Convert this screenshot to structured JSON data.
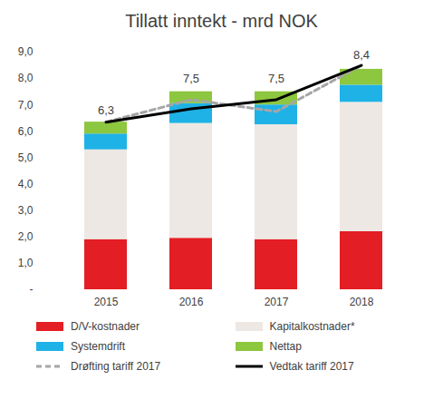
{
  "chart_data": {
    "type": "bar",
    "stacked": true,
    "title": "Tillatt inntekt - mrd NOK",
    "categories": [
      "2015",
      "2016",
      "2017",
      "2018"
    ],
    "series": [
      {
        "name": "D/V-kostnader",
        "color": "#e31e24",
        "type": "bar",
        "values": [
          1.9,
          1.95,
          1.9,
          2.2
        ]
      },
      {
        "name": "Kapitalkostnader*",
        "color": "#ede8e3",
        "type": "bar",
        "values": [
          3.4,
          4.35,
          4.35,
          4.9
        ]
      },
      {
        "name": "Systemdrift",
        "color": "#1fb2e6",
        "type": "bar",
        "values": [
          0.6,
          0.75,
          0.75,
          0.65
        ]
      },
      {
        "name": "Nettap",
        "color": "#8dc63f",
        "type": "bar",
        "values": [
          0.45,
          0.45,
          0.5,
          0.6
        ]
      },
      {
        "name": "Drøfting tariff 2017",
        "color": "#a6a6a6",
        "type": "line",
        "line_style": "dashed",
        "values": [
          6.35,
          7.2,
          6.75,
          8.5
        ]
      },
      {
        "name": "Vedtak tariff 2017",
        "color": "#000000",
        "type": "line",
        "line_style": "solid",
        "values": [
          6.35,
          6.85,
          7.2,
          8.5
        ]
      }
    ],
    "totals": {
      "values": [
        6.3,
        7.5,
        7.5,
        8.4
      ],
      "value_labels": [
        "6,3",
        "7,5",
        "7,5",
        "8,4"
      ]
    },
    "ylim": [
      0,
      9
    ],
    "yticks": [
      {
        "value": 0,
        "label": "-"
      },
      {
        "value": 1,
        "label": "1,0"
      },
      {
        "value": 2,
        "label": "2,0"
      },
      {
        "value": 3,
        "label": "3,0"
      },
      {
        "value": 4,
        "label": "4,0"
      },
      {
        "value": 5,
        "label": "5,0"
      },
      {
        "value": 6,
        "label": "6,0"
      },
      {
        "value": 7,
        "label": "7,0"
      },
      {
        "value": 8,
        "label": "8,0"
      },
      {
        "value": 9,
        "label": "9,0"
      }
    ],
    "grid": false,
    "legend": "bottom",
    "data_labels": true
  }
}
